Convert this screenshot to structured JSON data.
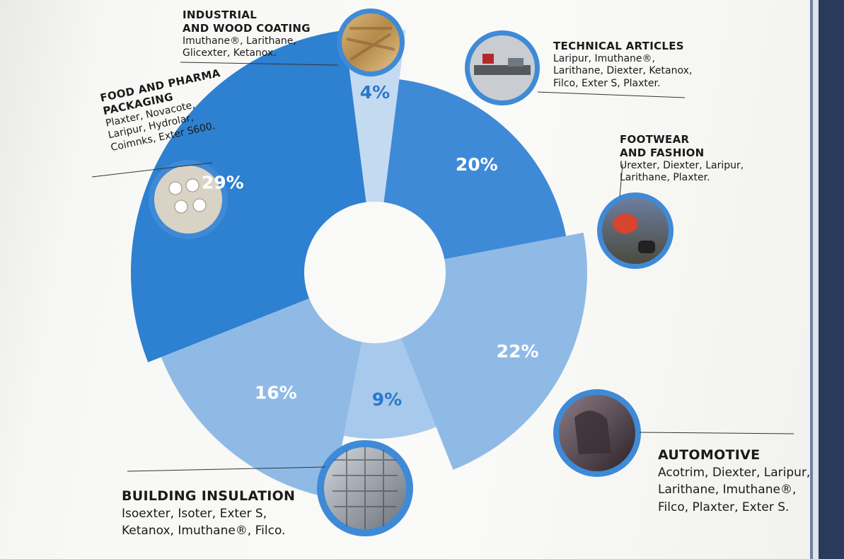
{
  "colors": {
    "dark": "#2e80d0",
    "mid": "#3f8ad6",
    "light": "#8fbae6",
    "lighter": "#a7c9ec",
    "pale": "#c4daf1"
  },
  "chart_data": {
    "type": "pie",
    "style": "donut",
    "categories": [
      "INDUSTRIAL AND WOOD COATING",
      "TECHNICAL ARTICLES",
      "FOOTWEAR AND FASHION",
      "AUTOMOTIVE",
      "BUILDING INSULATION",
      "FOOD AND PHARMA PACKAGING"
    ],
    "values": [
      4,
      20,
      22,
      9,
      16,
      29
    ],
    "value_labels": [
      "4%",
      "20%",
      "22%",
      "9%",
      "16%",
      "29%"
    ],
    "icons": [
      "wood-icon",
      "conveyor-icon",
      "running-shoe-icon",
      "car-seat-icon",
      "skyscraper-icon",
      "pill-blister-icon"
    ]
  },
  "segments": [
    {
      "title": "INDUSTRIAL\nAND WOOD COATING",
      "products": "Imuthane®, Larithane,\nGlicexter, Ketanox.",
      "pct": "4%"
    },
    {
      "title": "TECHNICAL ARTICLES",
      "products": "Laripur, Imuthane®,\nLarithane, Diexter, Ketanox,\nFilco, Exter S, Plaxter.",
      "pct": "20%"
    },
    {
      "title": "FOOTWEAR\nAND FASHION",
      "products": "Urexter, Diexter, Laripur,\nLarithane, Plaxter.",
      "pct": "22%"
    },
    {
      "title": "AUTOMOTIVE",
      "products": "Acotrim, Diexter, Laripur,\nLarithane, Imuthane®,\nFilco, Plaxter, Exter S.",
      "pct": "9%"
    },
    {
      "title": "BUILDING INSULATION",
      "products": "Isoexter, Isoter, Exter S,\nKetanox, Imuthane®, Filco.",
      "pct": "16%"
    },
    {
      "title": "FOOD AND PHARMA\nPACKAGING",
      "products": "Plaxter, Novacote,\nLaripur, Hydrolar,\nCoimnks, Exter S600.",
      "pct": "29%"
    }
  ]
}
